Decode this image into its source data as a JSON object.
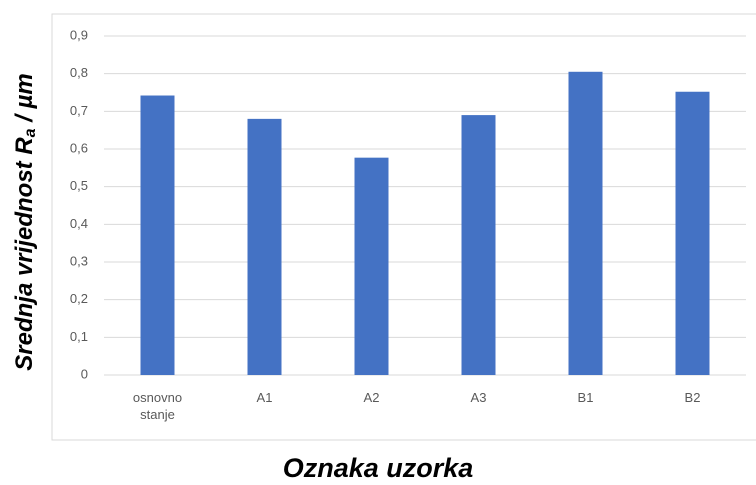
{
  "chart_data": {
    "type": "bar",
    "xlabel": "Oznaka uzorka",
    "ylabel": [
      "Srednja vrijednost R",
      "a",
      " / µm"
    ],
    "categories": [
      "osnovno stanje",
      "A1",
      "A2",
      "A3",
      "B1",
      "B2"
    ],
    "values": [
      0.742,
      0.68,
      0.577,
      0.69,
      0.805,
      0.752
    ],
    "color": "#4472c4",
    "ylim": [
      0,
      0.9
    ],
    "yticks": [
      0,
      {
        "value": 0.1,
        "label": "0,1"
      },
      {
        "value": 0.2,
        "label": "0,2"
      },
      {
        "value": 0.3,
        "label": "0,3"
      },
      {
        "value": 0.4,
        "label": "0,4"
      },
      {
        "value": 0.5,
        "label": "0,5"
      },
      {
        "value": 0.6,
        "label": "0,6"
      },
      {
        "value": 0.7,
        "label": "0,7"
      },
      {
        "value": 0.8,
        "label": "0,8"
      },
      {
        "value": 0.9,
        "label": "0,9"
      }
    ],
    "grid": true
  }
}
